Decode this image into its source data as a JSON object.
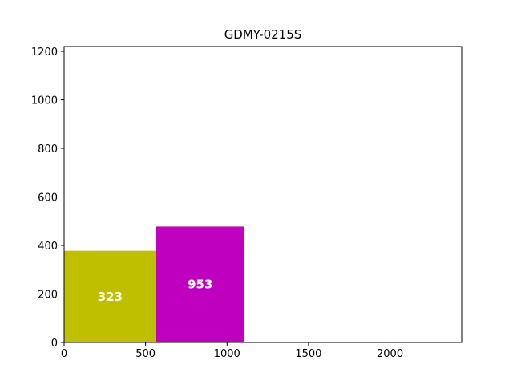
{
  "chart_data": {
    "type": "bar",
    "title": "GDMY-0215S",
    "xlabel": "",
    "ylabel": "",
    "xlim": [
      0,
      2440
    ],
    "ylim": [
      0,
      1220
    ],
    "grid": false,
    "xticks": [
      0,
      500,
      1000,
      1500,
      2000
    ],
    "yticks": [
      0,
      200,
      400,
      600,
      800,
      1000,
      1200
    ],
    "bars": [
      {
        "x0": 0,
        "x1": 565,
        "height": 378,
        "label": "323",
        "color": "#bfbf00"
      },
      {
        "x0": 565,
        "x1": 1105,
        "height": 478,
        "label": "953",
        "color": "#bf00bf"
      }
    ]
  }
}
